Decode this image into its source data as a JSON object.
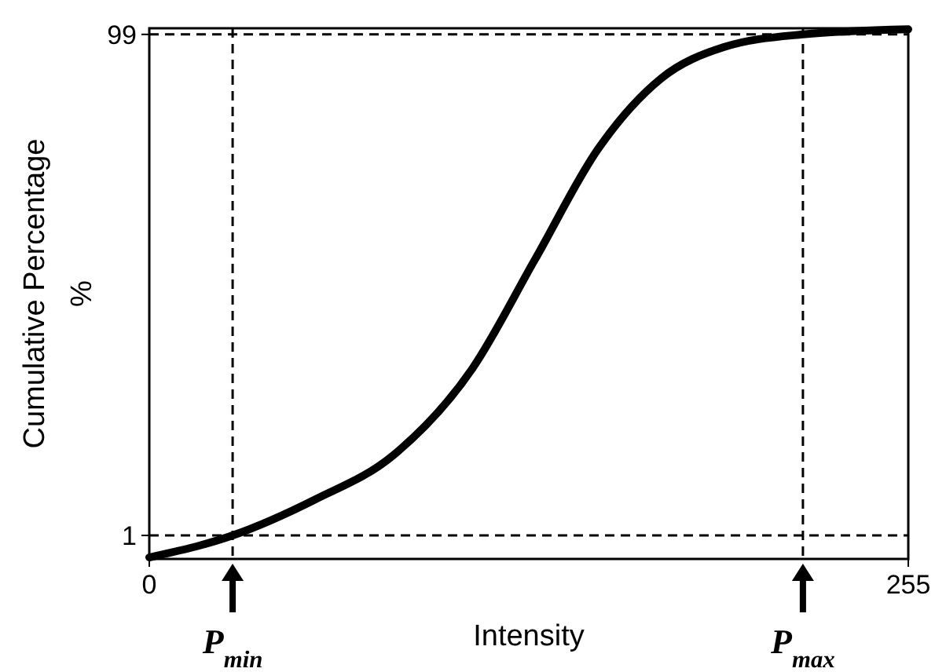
{
  "chart_data": {
    "type": "line",
    "xlabel": "Intensity",
    "ylabel": "Cumulative Percentage\n%",
    "x": [
      0,
      28,
      55.6,
      82,
      108.5,
      129.6,
      150.8,
      172,
      193,
      219.6,
      255
    ],
    "series": [
      {
        "color": "#000000",
        "values": [
          -3.3,
          1,
          8,
          16.7,
          33.6,
          55,
          76.6,
          90.4,
          96.5,
          99,
          100
        ]
      }
    ],
    "xlim": [
      0,
      255
    ],
    "ylim": [
      -3.6,
      100.2
    ],
    "xticks": [
      0,
      255
    ],
    "yticks": [
      1,
      99
    ],
    "marker": "none",
    "line_style": "solid",
    "ref_lines": [
      {
        "axis": "x",
        "value": 28,
        "label": "P$_{min}$",
        "line_style": "dashed"
      },
      {
        "axis": "x",
        "value": 219.6,
        "label": "P$_{max}$",
        "line_style": "dashed"
      },
      {
        "axis": "y",
        "value": 1,
        "line_style": "dashed"
      },
      {
        "axis": "y",
        "value": 99,
        "line_style": "dashed"
      }
    ]
  }
}
